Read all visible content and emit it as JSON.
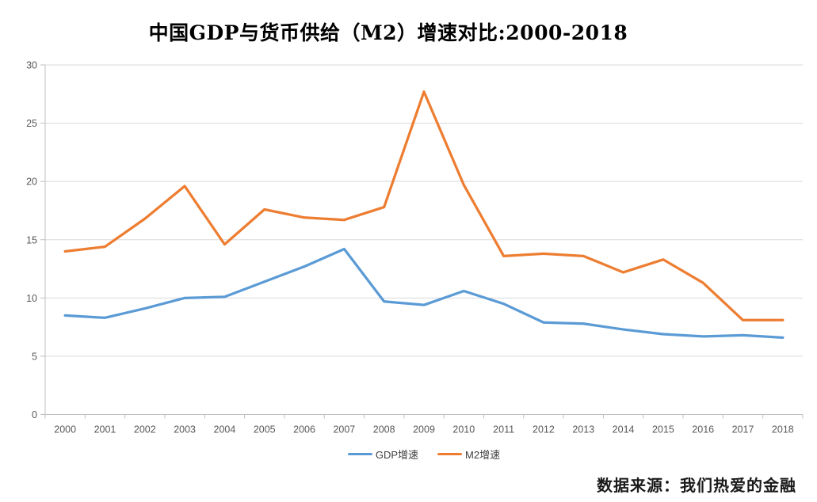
{
  "chart_data": {
    "type": "line",
    "title": "中国GDP与货币供给（M2）增速对比:2000-2018",
    "categories": [
      "2000",
      "2001",
      "2002",
      "2003",
      "2004",
      "2005",
      "2006",
      "2007",
      "2008",
      "2009",
      "2010",
      "2011",
      "2012",
      "2013",
      "2014",
      "2015",
      "2016",
      "2017",
      "2018"
    ],
    "series": [
      {
        "name": "GDP增速",
        "color": "#5B9BD5",
        "values": [
          8.5,
          8.3,
          9.1,
          10.0,
          10.1,
          11.4,
          12.7,
          14.2,
          9.7,
          9.4,
          10.6,
          9.5,
          7.9,
          7.8,
          7.3,
          6.9,
          6.7,
          6.8,
          6.6
        ]
      },
      {
        "name": "M2增速",
        "color": "#ED7D31",
        "values": [
          14.0,
          14.4,
          16.8,
          19.6,
          14.6,
          17.6,
          16.9,
          16.7,
          17.8,
          27.7,
          19.7,
          13.6,
          13.8,
          13.6,
          12.2,
          13.3,
          11.3,
          8.1,
          8.1
        ]
      }
    ],
    "xlabel": "",
    "ylabel": "",
    "ylim": [
      0,
      30
    ],
    "y_ticks": [
      0,
      5,
      10,
      15,
      20,
      25,
      30
    ],
    "grid": "horizontal",
    "legend_position": "bottom"
  },
  "footer": {
    "source": "数据来源：我们热爱的金融"
  },
  "colors": {
    "gdp_line": "#5B9BD5",
    "m2_line": "#ED7D31",
    "gridline": "#D9D9D9",
    "axis": "#BFBFBF",
    "tick_label": "#595959",
    "background": "#FFFFFF"
  }
}
